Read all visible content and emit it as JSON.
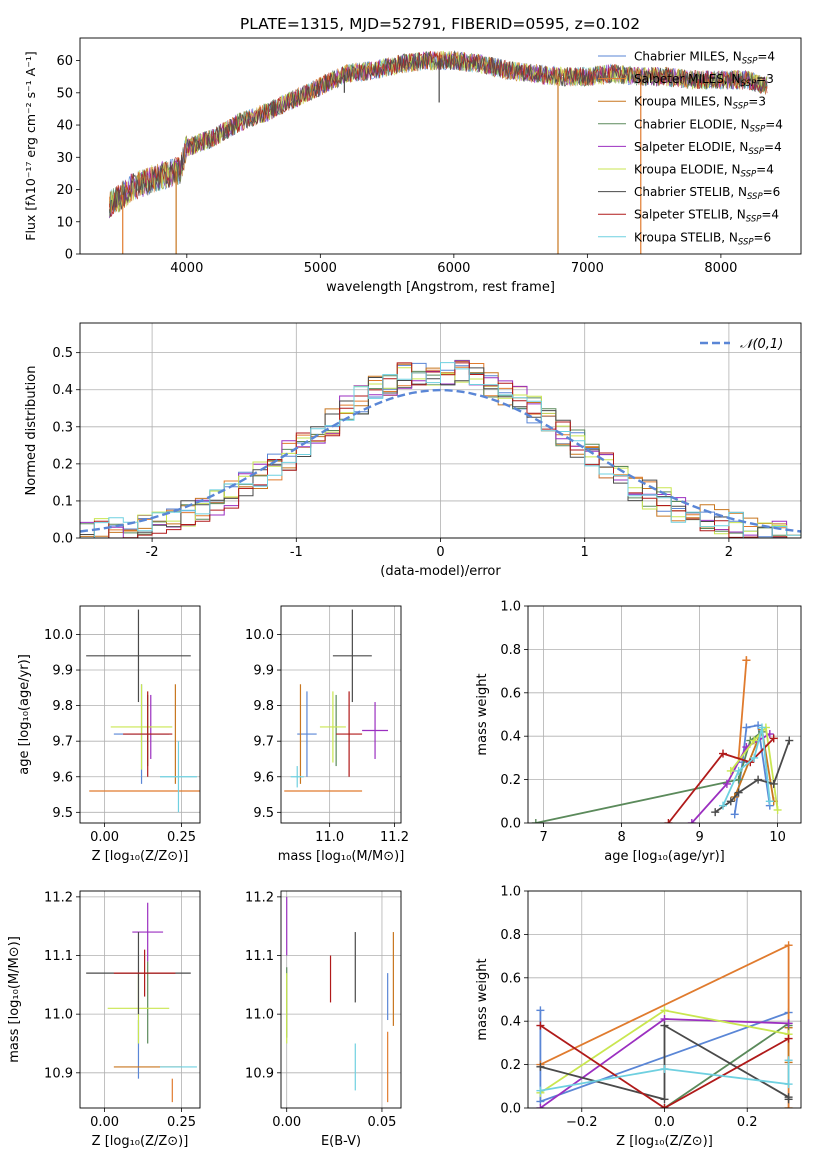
{
  "colors": {
    "Chabrier MILES": "#5a86d6",
    "Salpeter MILES": "#e07b2e",
    "Kroupa MILES": "#c8761f",
    "Chabrier ELODIE": "#5b8a5b",
    "Salpeter ELODIE": "#9b2fc0",
    "Kroupa ELODIE": "#c9e650",
    "Chabrier STELIB": "#4a4a4a",
    "Salpeter STELIB": "#b01a1a",
    "Kroupa STELIB": "#6fd0e0"
  },
  "chart_data": [
    {
      "id": "spectrum",
      "type": "line",
      "title": "PLATE=1315, MJD=52791, FIBERID=0595, z=0.102",
      "xlabel": "wavelength [Angstrom, rest frame]",
      "ylabel": "Flux [fλ10⁻¹⁷ erg cm⁻² s⁻¹ A⁻¹]",
      "xlim": [
        3200,
        8600
      ],
      "ylim": [
        0,
        67
      ],
      "xticks": [
        4000,
        5000,
        6000,
        7000,
        8000
      ],
      "yticks": [
        0,
        10,
        20,
        30,
        40,
        50,
        60
      ],
      "legend_position": "top-right",
      "legend": [
        "Chabrier MILES, N_SSP=4",
        "Salpeter MILES, N_SSP=3",
        "Kroupa MILES, N_SSP=3",
        "Chabrier ELODIE, N_SSP=4",
        "Salpeter ELODIE, N_SSP=4",
        "Kroupa ELODIE, N_SSP=4",
        "Chabrier STELIB, N_SSP=6",
        "Salpeter STELIB, N_SSP=4",
        "Kroupa STELIB, N_SSP=6"
      ],
      "continuum": [
        [
          3420,
          15
        ],
        [
          3600,
          21
        ],
        [
          3800,
          24
        ],
        [
          3950,
          26
        ],
        [
          4000,
          33
        ],
        [
          4200,
          36
        ],
        [
          4400,
          41
        ],
        [
          4600,
          44
        ],
        [
          4800,
          48
        ],
        [
          5000,
          52
        ],
        [
          5200,
          56
        ],
        [
          5400,
          57
        ],
        [
          5600,
          59
        ],
        [
          5800,
          60
        ],
        [
          6000,
          60
        ],
        [
          6200,
          59
        ],
        [
          6400,
          57
        ],
        [
          6600,
          56
        ],
        [
          6800,
          55
        ],
        [
          7000,
          55
        ],
        [
          7200,
          56
        ],
        [
          7400,
          55
        ],
        [
          7600,
          55
        ],
        [
          7800,
          54
        ],
        [
          8000,
          54
        ],
        [
          8200,
          54
        ],
        [
          8350,
          52
        ]
      ],
      "dips": [
        {
          "x": 3520,
          "y": 0,
          "series": "Salpeter MILES"
        },
        {
          "x": 3920,
          "y": 0,
          "series": "Kroupa MILES"
        },
        {
          "x": 5180,
          "y": 50,
          "series": "Chabrier STELIB"
        },
        {
          "x": 5890,
          "y": 47,
          "series": "Chabrier STELIB"
        },
        {
          "x": 6780,
          "y": 0,
          "series": "Kroupa MILES"
        },
        {
          "x": 7400,
          "y": 0,
          "series": "Salpeter MILES"
        }
      ]
    },
    {
      "id": "residuals",
      "type": "line",
      "xlabel": "(data-model)/error",
      "ylabel": "Normed distribution",
      "xlim": [
        -2.5,
        2.5
      ],
      "ylim": [
        0,
        0.58
      ],
      "xticks": [
        -2,
        -1,
        0,
        1,
        2
      ],
      "yticks": [
        0.0,
        0.1,
        0.2,
        0.3,
        0.4,
        0.5
      ],
      "legend_position": "top-right",
      "legend": [
        "𝒩(0,1)"
      ],
      "gaussian": {
        "mean": 0,
        "sigma": 1
      }
    },
    {
      "id": "age-vs-Z",
      "type": "scatter",
      "xlabel": "Z [log₁₀(Z/Z⊙)]",
      "ylabel": "age  [log₁₀(age/yr)]",
      "xlim": [
        -0.08,
        0.31
      ],
      "ylim": [
        9.47,
        10.08
      ],
      "xticks": [
        0.0,
        0.25
      ],
      "xticklabels": [
        "0.00",
        "0.25"
      ],
      "yticks": [
        9.5,
        9.6,
        9.7,
        9.8,
        9.9,
        10.0
      ],
      "points": [
        {
          "series": "Chabrier MILES",
          "x": 0.12,
          "xerr": 0.09,
          "y": 9.72,
          "yerr": 0.14
        },
        {
          "series": "Salpeter MILES",
          "x": 0.14,
          "xerr": 0.19,
          "y": 9.56,
          "yerr": 0.0
        },
        {
          "series": "Kroupa MILES",
          "x": 0.23,
          "xerr": 0.0,
          "y": 9.72,
          "yerr": 0.14
        },
        {
          "series": "Chabrier ELODIE",
          "x": 0.14,
          "xerr": 0.0,
          "y": 9.73,
          "yerr": 0.1
        },
        {
          "series": "Salpeter ELODIE",
          "x": 0.15,
          "xerr": 0.0,
          "y": 9.74,
          "yerr": 0.09
        },
        {
          "series": "Kroupa ELODIE",
          "x": 0.12,
          "xerr": 0.1,
          "y": 9.74,
          "yerr": 0.12
        },
        {
          "series": "Chabrier STELIB",
          "x": 0.11,
          "xerr": 0.17,
          "y": 9.94,
          "yerr": 0.13
        },
        {
          "series": "Salpeter STELIB",
          "x": 0.14,
          "xerr": 0.08,
          "y": 9.72,
          "yerr": 0.12
        },
        {
          "series": "Kroupa STELIB",
          "x": 0.24,
          "xerr": 0.06,
          "y": 9.6,
          "yerr": 0.1
        }
      ]
    },
    {
      "id": "age-vs-mass",
      "type": "scatter",
      "xlabel": "mass [log₁₀(M/M⊙)]",
      "ylabel": "",
      "xlim": [
        10.85,
        11.22
      ],
      "ylim": [
        9.47,
        10.08
      ],
      "xticks": [
        11.0,
        11.2
      ],
      "xticklabels": [
        "11.0",
        "11.2"
      ],
      "yticks": [
        9.5,
        9.6,
        9.7,
        9.8,
        9.9,
        10.0
      ],
      "points": [
        {
          "series": "Chabrier MILES",
          "x": 10.93,
          "xerr": 0.03,
          "y": 9.72,
          "yerr": 0.12
        },
        {
          "series": "Salpeter MILES",
          "x": 10.98,
          "xerr": 0.12,
          "y": 9.56,
          "yerr": 0.0
        },
        {
          "series": "Kroupa MILES",
          "x": 10.91,
          "xerr": 0.0,
          "y": 9.72,
          "yerr": 0.14
        },
        {
          "series": "Chabrier ELODIE",
          "x": 11.02,
          "xerr": 0.0,
          "y": 9.73,
          "yerr": 0.1
        },
        {
          "series": "Salpeter ELODIE",
          "x": 11.14,
          "xerr": 0.04,
          "y": 9.73,
          "yerr": 0.08
        },
        {
          "series": "Kroupa ELODIE",
          "x": 11.01,
          "xerr": 0.04,
          "y": 9.74,
          "yerr": 0.1
        },
        {
          "series": "Chabrier STELIB",
          "x": 11.07,
          "xerr": 0.06,
          "y": 9.94,
          "yerr": 0.13
        },
        {
          "series": "Salpeter STELIB",
          "x": 11.06,
          "xerr": 0.04,
          "y": 9.72,
          "yerr": 0.12
        },
        {
          "series": "Kroupa STELIB",
          "x": 10.9,
          "xerr": 0.02,
          "y": 9.6,
          "yerr": 0.03
        }
      ]
    },
    {
      "id": "weight-vs-age",
      "type": "line",
      "xlabel": "age  [log₁₀(age/yr)]",
      "ylabel": "mass weight",
      "xlim": [
        6.8,
        10.3
      ],
      "ylim": [
        0,
        1
      ],
      "xticks": [
        7,
        8,
        9,
        10
      ],
      "yticks": [
        0.0,
        0.2,
        0.4,
        0.6,
        0.8,
        1.0
      ],
      "series": [
        {
          "name": "Chabrier MILES",
          "x": [
            9.45,
            9.55,
            9.6,
            9.75,
            9.9
          ],
          "y": [
            0.04,
            0.28,
            0.44,
            0.45,
            0.08
          ]
        },
        {
          "name": "Salpeter MILES",
          "x": [
            9.5,
            9.6,
            9.6
          ],
          "y": [
            0.3,
            0.75,
            0.75
          ]
        },
        {
          "name": "Kroupa MILES",
          "x": [
            9.45,
            9.8,
            9.95
          ],
          "y": [
            0.12,
            0.43,
            0.1
          ]
        },
        {
          "name": "Chabrier ELODIE",
          "x": [
            6.9,
            9.5,
            9.65,
            9.8
          ],
          "y": [
            0.0,
            0.2,
            0.38,
            0.42
          ]
        },
        {
          "name": "Salpeter ELODIE",
          "x": [
            8.9,
            9.35,
            9.6,
            9.9
          ],
          "y": [
            0.0,
            0.18,
            0.35,
            0.41
          ]
        },
        {
          "name": "Kroupa ELODIE",
          "x": [
            9.4,
            9.7,
            9.85,
            10.0
          ],
          "y": [
            0.24,
            0.38,
            0.44,
            0.06
          ]
        },
        {
          "name": "Chabrier STELIB",
          "x": [
            9.2,
            9.4,
            9.5,
            9.75,
            9.95,
            10.15
          ],
          "y": [
            0.05,
            0.1,
            0.14,
            0.2,
            0.18,
            0.38
          ]
        },
        {
          "name": "Salpeter STELIB",
          "x": [
            8.6,
            9.3,
            9.65,
            9.95
          ],
          "y": [
            0.0,
            0.32,
            0.28,
            0.39
          ]
        },
        {
          "name": "Kroupa STELIB",
          "x": [
            9.3,
            9.5,
            9.7,
            9.8,
            9.9
          ],
          "y": [
            0.08,
            0.24,
            0.3,
            0.44,
            0.1
          ]
        }
      ]
    },
    {
      "id": "mass-vs-Z",
      "type": "scatter",
      "xlabel": "Z [log₁₀(Z/Z⊙)]",
      "ylabel": "mass [log₁₀(M/M⊙)]",
      "xlim": [
        -0.08,
        0.31
      ],
      "ylim": [
        10.84,
        11.21
      ],
      "xticks": [
        0.0,
        0.25
      ],
      "xticklabels": [
        "0.00",
        "0.25"
      ],
      "yticks": [
        10.9,
        11.0,
        11.1,
        11.2
      ],
      "points": [
        {
          "series": "Chabrier MILES",
          "x": 0.11,
          "xerr": 0.0,
          "y": 10.94,
          "yerr": 0.05
        },
        {
          "series": "Salpeter MILES",
          "x": 0.22,
          "xerr": 0.0,
          "y": 10.87,
          "yerr": 0.02
        },
        {
          "series": "Kroupa MILES",
          "x": 0.14,
          "xerr": 0.11,
          "y": 10.91,
          "yerr": 0.0
        },
        {
          "series": "Chabrier ELODIE",
          "x": 0.14,
          "xerr": 0.0,
          "y": 11.02,
          "yerr": 0.07
        },
        {
          "series": "Salpeter ELODIE",
          "x": 0.14,
          "xerr": 0.05,
          "y": 11.14,
          "yerr": 0.05
        },
        {
          "series": "Kroupa ELODIE",
          "x": 0.11,
          "xerr": 0.1,
          "y": 11.01,
          "yerr": 0.06
        },
        {
          "series": "Chabrier STELIB",
          "x": 0.11,
          "xerr": 0.17,
          "y": 11.07,
          "yerr": 0.07
        },
        {
          "series": "Salpeter STELIB",
          "x": 0.13,
          "xerr": 0.1,
          "y": 11.07,
          "yerr": 0.04
        },
        {
          "series": "Kroupa STELIB",
          "x": 0.24,
          "xerr": 0.06,
          "y": 10.91,
          "yerr": 0.0
        }
      ]
    },
    {
      "id": "mass-vs-EBV",
      "type": "scatter",
      "xlabel": "E(B-V)",
      "ylabel": "",
      "xlim": [
        -0.003,
        0.06
      ],
      "ylim": [
        10.84,
        11.21
      ],
      "xticks": [
        0.0,
        0.05
      ],
      "xticklabels": [
        "0.00",
        "0.05"
      ],
      "yticks": [
        10.9,
        11.0,
        11.1,
        11.2
      ],
      "points": [
        {
          "series": "Chabrier MILES",
          "x": 0.053,
          "xerr": 0.0,
          "y": 11.03,
          "yerr": 0.04
        },
        {
          "series": "Salpeter MILES",
          "x": 0.053,
          "xerr": 0.0,
          "y": 10.91,
          "yerr": 0.06
        },
        {
          "series": "Kroupa MILES",
          "x": 0.056,
          "xerr": 0.0,
          "y": 11.06,
          "yerr": 0.08
        },
        {
          "series": "Chabrier ELODIE",
          "x": 0.0,
          "xerr": 0.0,
          "y": 11.02,
          "yerr": 0.06
        },
        {
          "series": "Salpeter ELODIE",
          "x": 0.0,
          "xerr": 0.0,
          "y": 11.15,
          "yerr": 0.05
        },
        {
          "series": "Kroupa ELODIE",
          "x": 0.0,
          "xerr": 0.0,
          "y": 11.01,
          "yerr": 0.06
        },
        {
          "series": "Chabrier STELIB",
          "x": 0.036,
          "xerr": 0.0,
          "y": 11.08,
          "yerr": 0.06
        },
        {
          "series": "Salpeter STELIB",
          "x": 0.023,
          "xerr": 0.0,
          "y": 11.06,
          "yerr": 0.04
        },
        {
          "series": "Kroupa STELIB",
          "x": 0.036,
          "xerr": 0.0,
          "y": 10.91,
          "yerr": 0.04
        }
      ]
    },
    {
      "id": "weight-vs-Z",
      "type": "line",
      "xlabel": "Z [log₁₀(Z/Z⊙)]",
      "ylabel": "mass weight",
      "xlim": [
        -0.33,
        0.33
      ],
      "ylim": [
        0,
        1
      ],
      "xticks": [
        -0.2,
        0.0,
        0.2
      ],
      "xticklabels": [
        "−0.2",
        "0.0",
        "0.2"
      ],
      "yticks": [
        0.0,
        0.2,
        0.4,
        0.6,
        0.8,
        1.0
      ],
      "series": [
        {
          "name": "Chabrier MILES",
          "x": [
            -0.3,
            -0.3,
            0.3
          ],
          "y": [
            0.45,
            0.03,
            0.44
          ]
        },
        {
          "name": "Salpeter MILES",
          "x": [
            -0.3,
            0.3,
            0.3
          ],
          "y": [
            0.2,
            0.75,
            0.0
          ]
        },
        {
          "name": "Kroupa MILES",
          "x": [
            0.3,
            0.3
          ],
          "y": [
            0.37,
            0.21
          ]
        },
        {
          "name": "Chabrier ELODIE",
          "x": [
            0.0,
            0.3,
            0.3
          ],
          "y": [
            0.0,
            0.39,
            0.38
          ]
        },
        {
          "name": "Salpeter ELODIE",
          "x": [
            -0.3,
            0.0,
            0.3
          ],
          "y": [
            0.0,
            0.41,
            0.39
          ]
        },
        {
          "name": "Kroupa ELODIE",
          "x": [
            -0.3,
            0.0,
            0.3
          ],
          "y": [
            0.07,
            0.45,
            0.34
          ]
        },
        {
          "name": "Chabrier STELIB",
          "x": [
            -0.3,
            0.0,
            0.0,
            0.3,
            0.3
          ],
          "y": [
            0.19,
            0.04,
            0.38,
            0.05,
            0.04
          ]
        },
        {
          "name": "Salpeter STELIB",
          "x": [
            -0.3,
            0.0,
            0.3
          ],
          "y": [
            0.38,
            0.0,
            0.32
          ]
        },
        {
          "name": "Kroupa STELIB",
          "x": [
            -0.3,
            0.0,
            0.3,
            0.3
          ],
          "y": [
            0.08,
            0.18,
            0.11,
            0.22
          ]
        }
      ]
    }
  ]
}
